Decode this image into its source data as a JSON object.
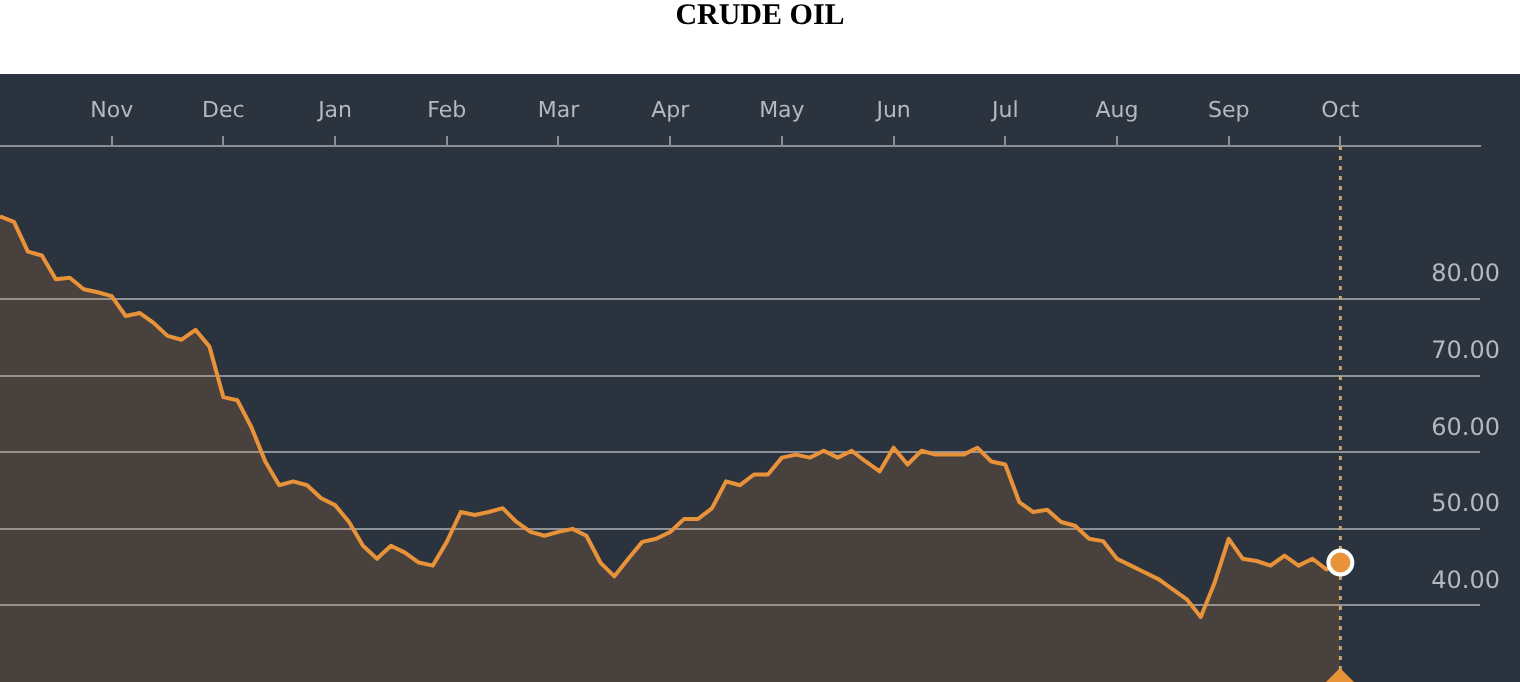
{
  "chart_data": {
    "type": "area",
    "title": "CRUDE OIL",
    "categories": [
      null,
      null,
      null,
      null,
      null,
      null,
      null,
      null,
      "Nov",
      null,
      null,
      null,
      null,
      null,
      null,
      null,
      "Dec",
      null,
      null,
      null,
      null,
      null,
      null,
      null,
      "Jan",
      null,
      null,
      null,
      null,
      null,
      null,
      null,
      "Feb",
      null,
      null,
      null,
      null,
      null,
      null,
      null,
      "Mar",
      null,
      null,
      null,
      null,
      null,
      null,
      null,
      "Apr",
      null,
      null,
      null,
      null,
      null,
      null,
      null,
      "May",
      null,
      null,
      null,
      null,
      null,
      null,
      null,
      "Jun",
      null,
      null,
      null,
      null,
      null,
      null,
      null,
      "Jul",
      null,
      null,
      null,
      null,
      null,
      null,
      null,
      "Aug",
      null,
      null,
      null,
      null,
      null,
      null,
      null,
      "Sep",
      null,
      null,
      null,
      null,
      null,
      null,
      null,
      "Oct",
      null,
      null,
      null,
      null,
      null,
      null,
      null,
      null,
      null,
      null
    ],
    "series": [
      {
        "color": "#e8923a",
        "values": [
          90.8,
          90.1,
          86.2,
          85.7,
          82.6,
          82.8,
          81.3,
          80.9,
          80.4,
          77.8,
          78.2,
          76.9,
          75.2,
          74.7,
          76.0,
          73.8,
          67.2,
          66.8,
          63.3,
          58.8,
          55.7,
          56.2,
          55.7,
          54.0,
          53.1,
          50.9,
          47.8,
          46.1,
          47.8,
          46.9,
          45.6,
          45.2,
          48.3,
          52.2,
          51.8,
          52.2,
          52.7,
          50.9,
          49.6,
          49.1,
          49.6,
          50.0,
          49.1,
          45.6,
          43.8,
          46.1,
          48.3,
          48.7,
          49.6,
          51.3,
          51.3,
          52.7,
          56.2,
          55.7,
          57.1,
          57.1,
          59.3,
          59.7,
          59.3,
          60.2,
          59.3,
          60.2,
          58.8,
          57.5,
          60.6,
          58.4,
          60.2,
          59.7,
          59.7,
          59.7,
          60.6,
          58.8,
          58.4,
          53.5,
          52.2,
          52.5,
          50.9,
          50.4,
          48.7,
          48.4,
          46.1,
          45.2,
          44.3,
          43.4,
          42.1,
          40.8,
          38.5,
          43.0,
          48.7,
          46.1,
          45.8,
          45.2,
          46.5,
          45.2,
          46.1,
          44.7,
          45.6,
          null,
          null,
          null,
          null,
          null,
          null,
          null,
          null,
          null,
          null
        ]
      }
    ],
    "ylim": [
      30,
      100
    ],
    "yticks": [
      {
        "value": 40,
        "label": "40.00"
      },
      {
        "value": 50,
        "label": "50.00"
      },
      {
        "value": 60,
        "label": "60.00"
      },
      {
        "value": 70,
        "label": "70.00"
      },
      {
        "value": 80,
        "label": "80.00"
      }
    ],
    "grid": "y",
    "legend": false,
    "ref_lines": [
      {
        "axis": "x",
        "value": "Oct",
        "color": "#c9a46a",
        "line_style": "dotted"
      }
    ]
  }
}
